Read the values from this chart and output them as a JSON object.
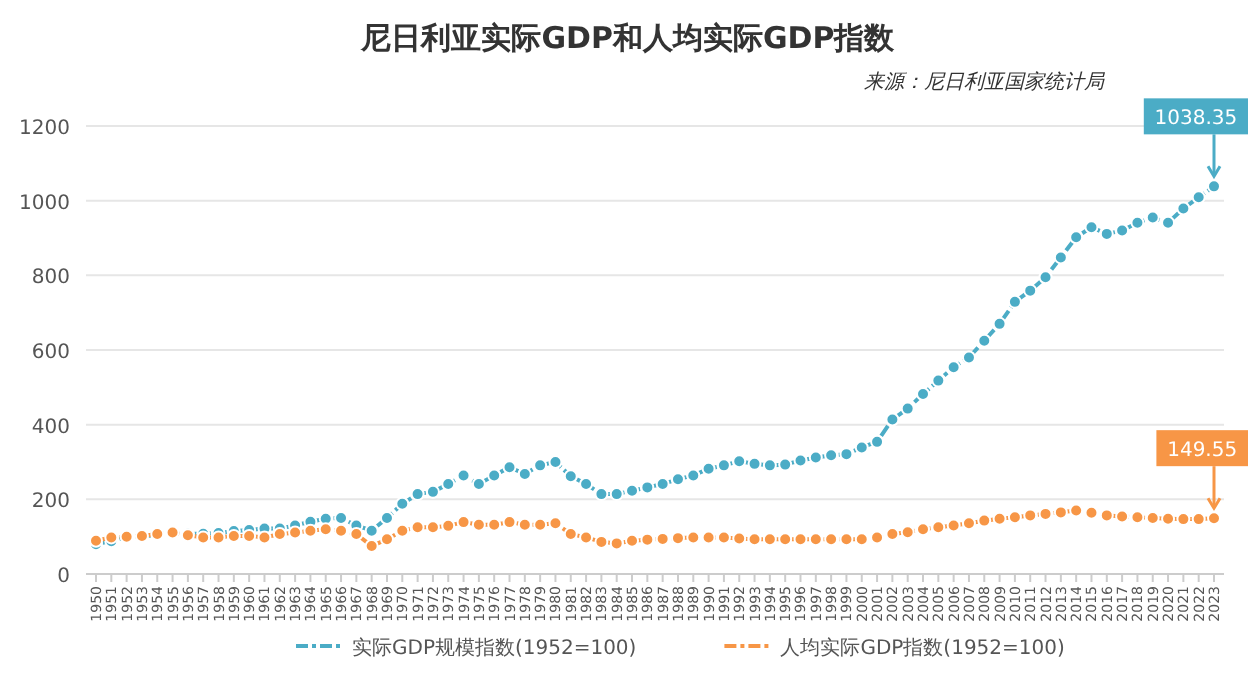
{
  "chart_data": {
    "type": "line",
    "title": "尼日利亚实际GDP和人均实际GDP指数",
    "categories": [
      "1950",
      "1951",
      "1952",
      "1953",
      "1954",
      "1955",
      "1956",
      "1957",
      "1958",
      "1959",
      "1960",
      "1961",
      "1962",
      "1963",
      "1964",
      "1965",
      "1966",
      "1967",
      "1968",
      "1969",
      "1970",
      "1971",
      "1972",
      "1973",
      "1974",
      "1975",
      "1976",
      "1977",
      "1978",
      "1979",
      "1980",
      "1981",
      "1982",
      "1983",
      "1984",
      "1985",
      "1986",
      "1987",
      "1988",
      "1989",
      "1990",
      "1991",
      "1992",
      "1993",
      "1994",
      "1995",
      "1996",
      "1997",
      "1998",
      "1999",
      "2000",
      "2001",
      "2002",
      "2003",
      "2004",
      "2005",
      "2006",
      "2007",
      "2008",
      "2009",
      "2010",
      "2011",
      "2012",
      "2013",
      "2014",
      "2015",
      "2016",
      "2017",
      "2018",
      "2019",
      "2020",
      "2021",
      "2022",
      "2023"
    ],
    "series": [
      {
        "name": "实际GDP规模指数(1952=100)",
        "color": "#4bacc6",
        "values": [
          80,
          88,
          100,
          100,
          105,
          110,
          108,
          108,
          110,
          115,
          118,
          122,
          122,
          130,
          140,
          148,
          150,
          130,
          116,
          150,
          188,
          214,
          220,
          241,
          264,
          241,
          264,
          286,
          268,
          291,
          300,
          262,
          241,
          214,
          214,
          223,
          232,
          241,
          254,
          264,
          282,
          291,
          302,
          295,
          291,
          293,
          304,
          312,
          318,
          321,
          339,
          354,
          414,
          443,
          482,
          518,
          554,
          580,
          625,
          670,
          729,
          759,
          795,
          848,
          902,
          929,
          911,
          920,
          941,
          955,
          941,
          979,
          1009,
          1038.35
        ]
      },
      {
        "name": "人均实际GDP指数(1952=100)",
        "color": "#f79646",
        "values": [
          89,
          98,
          100,
          102,
          107,
          111,
          104,
          98,
          98,
          102,
          102,
          98,
          107,
          111,
          116,
          120,
          116,
          107,
          75,
          93,
          116,
          125,
          125,
          129,
          139,
          132,
          132,
          139,
          132,
          132,
          136,
          107,
          98,
          86,
          82,
          89,
          92,
          94,
          96,
          98,
          98,
          98,
          95,
          93,
          93,
          93,
          93,
          93,
          93,
          93,
          93,
          98,
          107,
          112,
          120,
          125,
          130,
          136,
          143,
          148,
          152,
          157,
          161,
          165,
          170,
          164,
          157,
          154,
          152,
          150,
          148,
          147,
          147,
          149.55
        ]
      }
    ],
    "ylim": [
      0,
      1200
    ],
    "yticks": [
      0,
      200,
      400,
      600,
      800,
      1000,
      1200
    ],
    "grid": "y",
    "legend": "bottom",
    "marker": "circle",
    "line_style": "dashed",
    "annotations": [
      {
        "text": "1038.35",
        "x": "2023",
        "y": 1038.35
      },
      {
        "text": "149.55",
        "x": "2023",
        "y": 149.55
      },
      "来源：尼日利亚国家统计局"
    ]
  }
}
